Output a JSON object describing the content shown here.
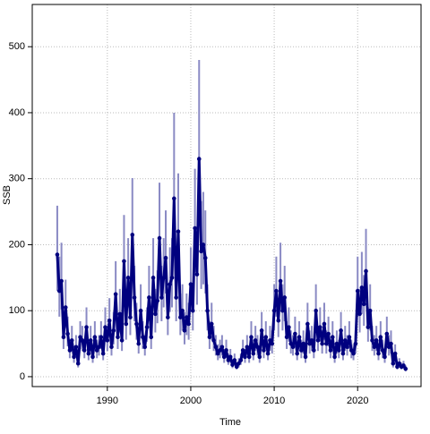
{
  "chart_data": {
    "type": "line",
    "xlabel": "Time",
    "ylabel": "SSB",
    "x": [
      1984,
      1984.25,
      1984.5,
      1984.75,
      1985,
      1985.25,
      1985.5,
      1985.75,
      1986,
      1986.25,
      1986.5,
      1986.75,
      1987,
      1987.25,
      1987.5,
      1987.75,
      1988,
      1988.25,
      1988.5,
      1988.75,
      1989,
      1989.25,
      1989.5,
      1989.75,
      1990,
      1990.25,
      1990.5,
      1990.75,
      1991,
      1991.25,
      1991.5,
      1991.75,
      1992,
      1992.25,
      1992.5,
      1992.75,
      1993,
      1993.25,
      1993.5,
      1993.75,
      1994,
      1994.25,
      1994.5,
      1994.75,
      1995,
      1995.25,
      1995.5,
      1995.75,
      1996,
      1996.25,
      1996.5,
      1996.75,
      1997,
      1997.25,
      1997.5,
      1997.75,
      1998,
      1998.25,
      1998.5,
      1998.75,
      1999,
      1999.25,
      1999.5,
      1999.75,
      2000,
      2000.25,
      2000.5,
      2000.75,
      2001,
      2001.25,
      2001.5,
      2001.75,
      2002,
      2002.25,
      2002.5,
      2002.75,
      2003,
      2003.25,
      2003.5,
      2003.75,
      2004,
      2004.25,
      2004.5,
      2004.75,
      2005,
      2005.25,
      2005.5,
      2005.75,
      2006,
      2006.25,
      2006.5,
      2006.75,
      2007,
      2007.25,
      2007.5,
      2007.75,
      2008,
      2008.25,
      2008.5,
      2008.75,
      2009,
      2009.25,
      2009.5,
      2009.75,
      2010,
      2010.25,
      2010.5,
      2010.75,
      2011,
      2011.25,
      2011.5,
      2011.75,
      2012,
      2012.25,
      2012.5,
      2012.75,
      2013,
      2013.25,
      2013.5,
      2013.75,
      2014,
      2014.25,
      2014.5,
      2014.75,
      2015,
      2015.25,
      2015.5,
      2015.75,
      2016,
      2016.25,
      2016.5,
      2016.75,
      2017,
      2017.25,
      2017.5,
      2017.75,
      2018,
      2018.25,
      2018.5,
      2018.75,
      2019,
      2019.25,
      2019.5,
      2019.75,
      2020,
      2020.25,
      2020.5,
      2020.75,
      2021,
      2021.25,
      2021.5,
      2021.75,
      2022,
      2022.25,
      2022.5,
      2022.75,
      2023,
      2023.25,
      2023.5,
      2023.75,
      2024,
      2024.25,
      2024.5,
      2024.75,
      2025,
      2025.25,
      2025.5,
      2025.75
    ],
    "series": [
      {
        "color": "#00007f",
        "band_color": "#8a8ac4",
        "values": [
          185,
          130,
          145,
          60,
          105,
          65,
          40,
          55,
          30,
          45,
          20,
          60,
          55,
          40,
          75,
          35,
          55,
          30,
          60,
          40,
          45,
          60,
          35,
          75,
          55,
          85,
          45,
          70,
          125,
          60,
          95,
          55,
          175,
          80,
          150,
          90,
          215,
          120,
          80,
          50,
          100,
          60,
          45,
          75,
          120,
          60,
          150,
          95,
          115,
          210,
          120,
          150,
          180,
          90,
          140,
          150,
          270,
          120,
          220,
          90,
          100,
          70,
          90,
          80,
          140,
          100,
          225,
          155,
          330,
          190,
          200,
          180,
          100,
          60,
          80,
          55,
          45,
          35,
          40,
          45,
          30,
          40,
          25,
          30,
          18,
          25,
          15,
          20,
          25,
          40,
          30,
          45,
          30,
          60,
          35,
          55,
          45,
          30,
          70,
          40,
          60,
          35,
          55,
          50,
          100,
          130,
          85,
          145,
          100,
          120,
          60,
          75,
          50,
          45,
          65,
          35,
          60,
          40,
          50,
          30,
          80,
          50,
          55,
          40,
          100,
          55,
          75,
          50,
          80,
          50,
          65,
          40,
          60,
          30,
          50,
          40,
          70,
          35,
          55,
          45,
          60,
          40,
          35,
          50,
          130,
          95,
          135,
          110,
          160,
          75,
          100,
          55,
          45,
          55,
          35,
          60,
          40,
          30,
          65,
          45,
          50,
          20,
          35,
          15,
          20,
          15,
          17,
          12
        ],
        "lower": [
          130,
          91,
          102,
          42,
          74,
          46,
          28,
          39,
          21,
          32,
          14,
          42,
          39,
          28,
          53,
          25,
          39,
          21,
          42,
          28,
          32,
          42,
          25,
          53,
          39,
          60,
          32,
          49,
          88,
          42,
          67,
          39,
          123,
          56,
          105,
          63,
          151,
          84,
          56,
          35,
          70,
          42,
          32,
          53,
          84,
          42,
          105,
          67,
          81,
          147,
          84,
          105,
          126,
          63,
          98,
          105,
          189,
          84,
          154,
          63,
          70,
          49,
          63,
          56,
          98,
          70,
          158,
          109,
          231,
          133,
          140,
          126,
          70,
          42,
          56,
          39,
          32,
          25,
          28,
          32,
          21,
          28,
          18,
          21,
          13,
          18,
          11,
          14,
          18,
          28,
          21,
          32,
          21,
          42,
          25,
          39,
          32,
          21,
          49,
          28,
          42,
          25,
          39,
          35,
          70,
          91,
          60,
          102,
          70,
          84,
          42,
          53,
          35,
          32,
          46,
          25,
          42,
          28,
          35,
          21,
          56,
          35,
          39,
          28,
          70,
          39,
          53,
          35,
          56,
          35,
          46,
          28,
          42,
          21,
          35,
          28,
          49,
          25,
          39,
          32,
          42,
          28,
          25,
          35,
          91,
          67,
          95,
          77,
          112,
          53,
          70,
          39,
          32,
          39,
          25,
          42,
          28,
          21,
          46,
          32,
          35,
          14,
          25,
          11,
          14,
          11,
          12,
          8
        ],
        "upper": [
          259,
          182,
          203,
          84,
          147,
          91,
          56,
          77,
          42,
          63,
          28,
          84,
          77,
          56,
          105,
          49,
          77,
          42,
          84,
          56,
          63,
          84,
          49,
          105,
          77,
          119,
          63,
          98,
          175,
          84,
          133,
          77,
          245,
          112,
          210,
          126,
          301,
          168,
          112,
          70,
          140,
          84,
          63,
          105,
          168,
          84,
          210,
          133,
          161,
          294,
          168,
          210,
          252,
          126,
          196,
          210,
          400,
          168,
          308,
          126,
          140,
          98,
          126,
          112,
          196,
          140,
          315,
          217,
          480,
          266,
          280,
          252,
          140,
          84,
          112,
          77,
          63,
          49,
          56,
          63,
          42,
          56,
          35,
          42,
          25,
          35,
          21,
          28,
          35,
          56,
          42,
          63,
          42,
          84,
          49,
          77,
          63,
          42,
          98,
          56,
          84,
          49,
          77,
          70,
          140,
          182,
          119,
          203,
          140,
          168,
          84,
          105,
          70,
          63,
          91,
          49,
          84,
          56,
          70,
          42,
          112,
          70,
          77,
          56,
          140,
          77,
          105,
          70,
          112,
          70,
          91,
          56,
          84,
          42,
          70,
          56,
          98,
          49,
          77,
          63,
          84,
          56,
          49,
          70,
          182,
          133,
          189,
          154,
          224,
          105,
          140,
          77,
          63,
          77,
          49,
          84,
          56,
          42,
          91,
          63,
          70,
          28,
          49,
          21,
          28,
          21,
          24,
          17
        ]
      }
    ],
    "xlim": [
      1981,
      2027.6
    ],
    "ylim": [
      -15,
      564
    ],
    "xticks": [
      1990,
      2000,
      2010,
      2020
    ],
    "yticks": [
      0,
      100,
      200,
      300,
      400,
      500
    ],
    "grid": true
  }
}
